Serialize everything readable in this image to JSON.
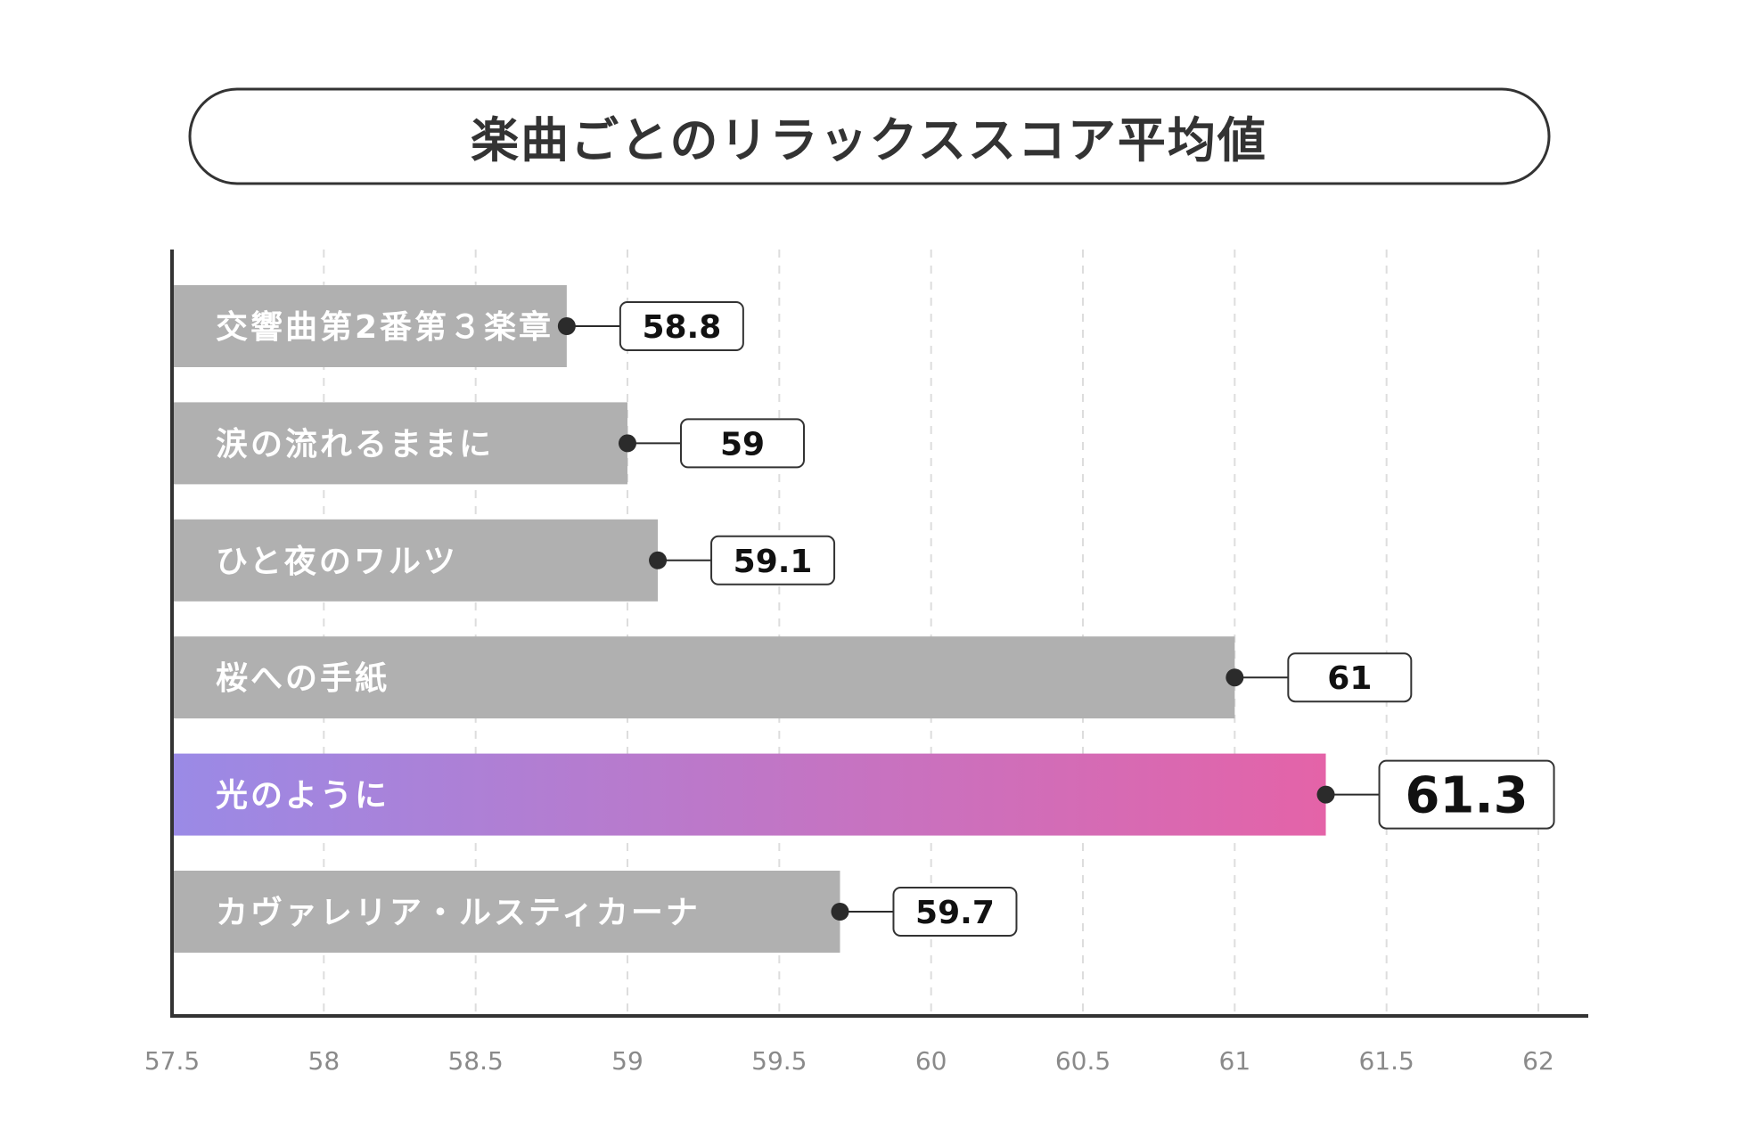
{
  "chart_data": {
    "type": "bar",
    "orientation": "horizontal",
    "title": "楽曲ごとのリラックススコア平均値",
    "categories": [
      "交響曲第2番第３楽章",
      "涙の流れるままに",
      "ひと夜のワルツ",
      "桜への手紙",
      "光のように",
      "カヴァレリア・ルスティカーナ"
    ],
    "values": [
      58.8,
      59,
      59.1,
      61,
      61.3,
      59.7
    ],
    "value_labels": [
      "58.8",
      "59",
      "59.1",
      "61",
      "61.3",
      "59.7"
    ],
    "highlight_index": 4,
    "xlim": [
      57.5,
      62
    ],
    "xticks": [
      "57.5",
      "58",
      "58.5",
      "59",
      "59.5",
      "60",
      "60.5",
      "61",
      "61.5",
      "62"
    ],
    "xtick_values": [
      57.5,
      58,
      58.5,
      59,
      59.5,
      60,
      60.5,
      61,
      61.5,
      62
    ],
    "grid": "vertical-dashed",
    "xlabel": "",
    "ylabel": ""
  },
  "colors": {
    "bar": "#b0b0b0",
    "highlight_start": "#9a8ae6",
    "highlight_end": "#e463a8",
    "axis": "#333333",
    "grid": "#dddddd",
    "dot": "#2b2b2b"
  }
}
